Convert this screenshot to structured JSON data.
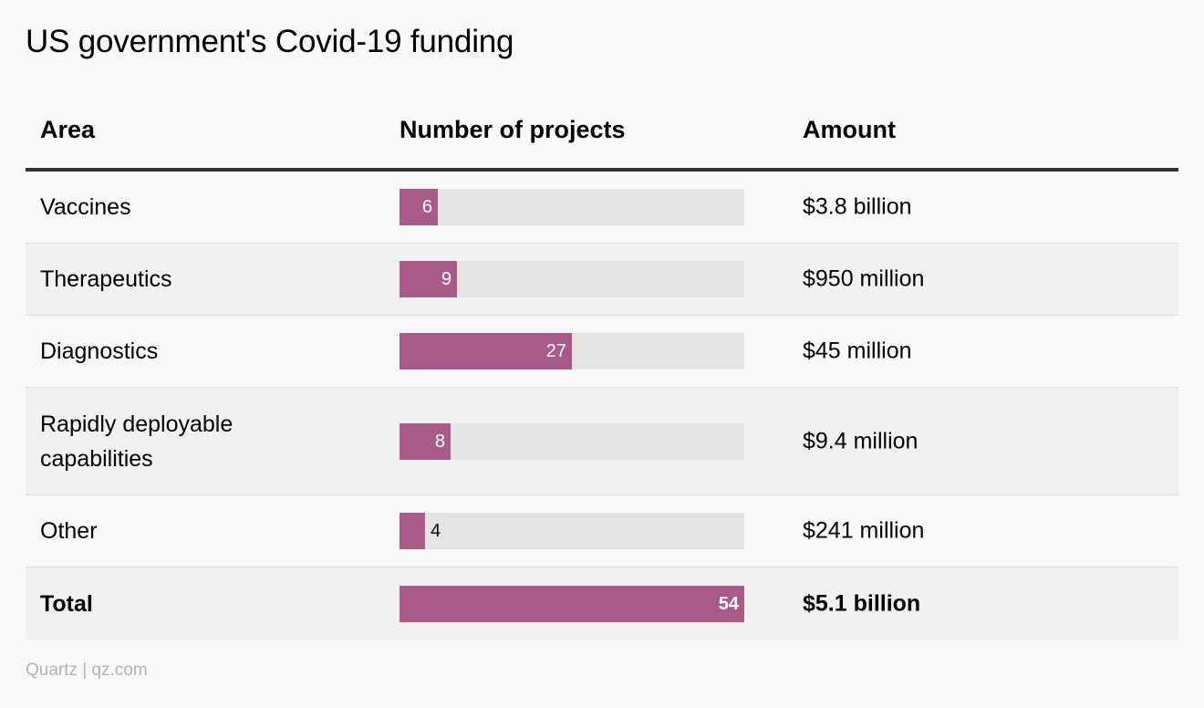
{
  "title": "US government's Covid-19 funding",
  "source": "Quartz | qz.com",
  "colors": {
    "bar": "#a85a88",
    "track": "#e4e4e4"
  },
  "chart_data": {
    "type": "table",
    "columns": [
      "Area",
      "Number of projects",
      "Amount"
    ],
    "max": 54,
    "rows": [
      {
        "area": "Vaccines",
        "projects": 6,
        "amount": "$3.8 billion"
      },
      {
        "area": "Therapeutics",
        "projects": 9,
        "amount": "$950 million"
      },
      {
        "area": "Diagnostics",
        "projects": 27,
        "amount": "$45 million"
      },
      {
        "area": "Rapidly deployable capabilities",
        "projects": 8,
        "amount": "$9.4 million"
      },
      {
        "area": "Other",
        "projects": 4,
        "amount": "$241 million"
      },
      {
        "area": "Total",
        "projects": 54,
        "amount": "$5.1 billion"
      }
    ]
  }
}
